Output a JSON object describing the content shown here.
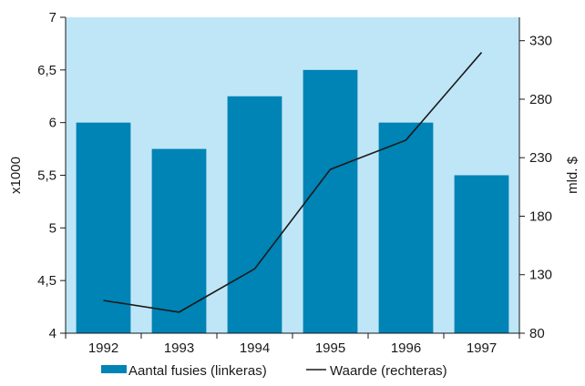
{
  "chart_data": {
    "type": "bar",
    "categories": [
      "1992",
      "1993",
      "1994",
      "1995",
      "1996",
      "1997"
    ],
    "series": [
      {
        "name": "Aantal fusies (linkeras)",
        "type": "bar",
        "axis": "left",
        "values": [
          6.0,
          5.75,
          6.25,
          6.5,
          6.0,
          5.5
        ]
      },
      {
        "name": "Waarde (rechteras)",
        "type": "line",
        "axis": "right",
        "values": [
          108,
          98,
          135,
          220,
          245,
          320
        ]
      }
    ],
    "ylabel": "x1000",
    "ylabel_right": "mld. $",
    "ylim": [
      4,
      7
    ],
    "ylim_right": [
      80,
      350
    ],
    "yticks": [
      "4",
      "4,5",
      "5",
      "5,5",
      "6",
      "6,5",
      "7"
    ],
    "yticks_right": [
      "80",
      "130",
      "180",
      "230",
      "280",
      "330"
    ],
    "legend_position": "bottom",
    "colors": {
      "plot_background": "#bfe6f7",
      "bar": "#0083b5",
      "line": "#1a1a1a"
    }
  }
}
